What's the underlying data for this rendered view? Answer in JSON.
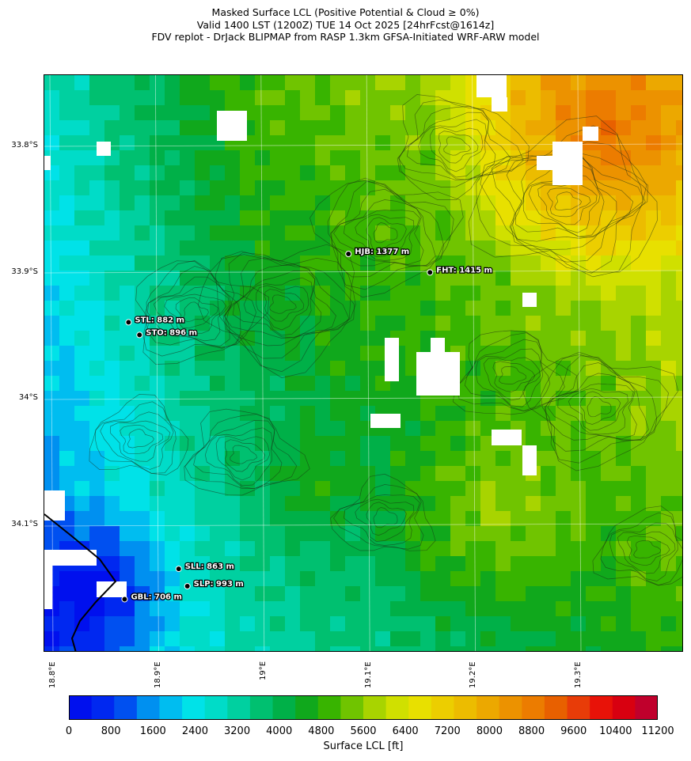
{
  "header": {
    "line1": "Masked Surface LCL (Positive Potential & Cloud ≥ 0%)",
    "line2": "Valid 1400 LST (1200Z) TUE 14 Oct 2025 [24hrFcst@1614z]",
    "line3": "FDV replot - DrJack BLIPMAP from RASP 1.3km GFSA-Initiated WRF-ARW model"
  },
  "axes": {
    "lat_labels": [
      "33.8°S",
      "33.9°S",
      "34°S",
      "34.1°S"
    ],
    "lon_labels": [
      "18.8°E",
      "18.9°E",
      "19°E",
      "19.1°E",
      "19.2°E",
      "19.3°E"
    ]
  },
  "stations": [
    {
      "label": "HJB: 1377 m",
      "lon": 19.0828,
      "lat": -33.885
    },
    {
      "label": "FHT: 1415 m",
      "lon": 19.16,
      "lat": -33.8996
    },
    {
      "label": "STL: 882 m",
      "lon": 18.8745,
      "lat": -33.939
    },
    {
      "label": "STO: 896 m",
      "lon": 18.8849,
      "lat": -33.949
    },
    {
      "label": "SLL: 863 m",
      "lon": 18.922,
      "lat": -34.1338
    },
    {
      "label": "SLP: 993 m",
      "lon": 18.9302,
      "lat": -34.1475
    },
    {
      "label": "GBL: 706 m",
      "lon": 18.8708,
      "lat": -34.1578
    }
  ],
  "colorbar": {
    "label": "Surface LCL [ft]",
    "ticks": [
      "0",
      "800",
      "1600",
      "2400",
      "3200",
      "4000",
      "4800",
      "5600",
      "6400",
      "7200",
      "8000",
      "8800",
      "9600",
      "10400",
      "11200"
    ],
    "colors": [
      "#0010ee",
      "#0028f0",
      "#0050f0",
      "#0090f0",
      "#00bdf0",
      "#00e2e8",
      "#00dcc8",
      "#00d0a0",
      "#00c070",
      "#00b048",
      "#10a81c",
      "#38b400",
      "#70c400",
      "#a8d400",
      "#d0e000",
      "#e8e000",
      "#ecce00",
      "#ecbc00",
      "#eca800",
      "#ec9200",
      "#ec7c00",
      "#e86000",
      "#e83c08",
      "#e81208",
      "#d80010",
      "#c0002c"
    ]
  }
}
